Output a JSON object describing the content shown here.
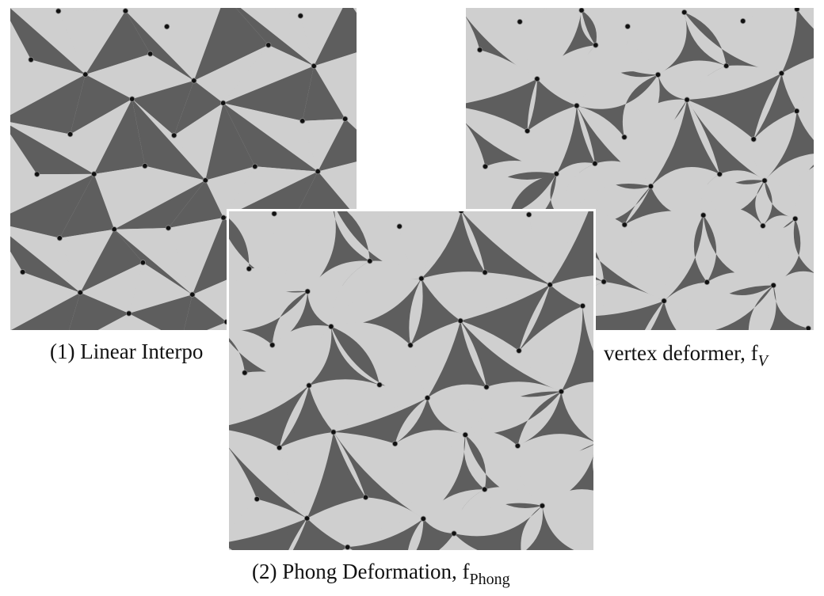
{
  "figure": {
    "panel_linear": {
      "caption": "(1) Linear Interpo"
    },
    "panel_vertex": {
      "caption": "vertex deformer, f",
      "caption_subscript": "V"
    },
    "panel_phong": {
      "caption": "(2) Phong Deformation, f",
      "caption_subscript": "Phong"
    }
  },
  "colors": {
    "dark_tile": "#5e5e5e",
    "light_tile": "#cfcfcf",
    "vertex_dot": "#111111"
  }
}
